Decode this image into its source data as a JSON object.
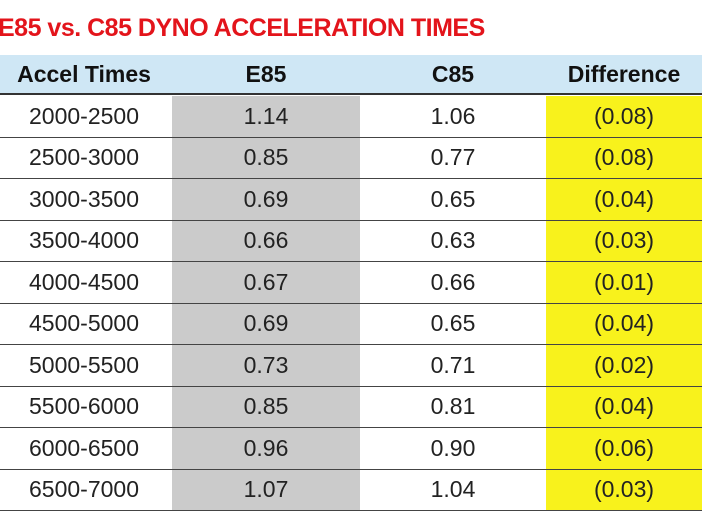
{
  "title": "E85 vs. C85 DYNO ACCELERATION TIMES",
  "table": {
    "header": [
      "Accel Times",
      "E85",
      "C85",
      "Difference"
    ],
    "rows": [
      [
        "2000-2500",
        "1.14",
        "1.06",
        "(0.08)"
      ],
      [
        "2500-3000",
        "0.85",
        "0.77",
        "(0.08)"
      ],
      [
        "3000-3500",
        "0.69",
        "0.65",
        "(0.04)"
      ],
      [
        "3500-4000",
        "0.66",
        "0.63",
        "(0.03)"
      ],
      [
        "4000-4500",
        "0.67",
        "0.66",
        "(0.01)"
      ],
      [
        "4500-5000",
        "0.69",
        "0.65",
        "(0.04)"
      ],
      [
        "5000-5500",
        "0.73",
        "0.71",
        "(0.02)"
      ],
      [
        "5500-6000",
        "0.85",
        "0.81",
        "(0.04)"
      ],
      [
        "6000-6500",
        "0.96",
        "0.90",
        "(0.06)"
      ],
      [
        "6500-7000",
        "1.07",
        "1.04",
        "(0.03)"
      ]
    ]
  }
}
